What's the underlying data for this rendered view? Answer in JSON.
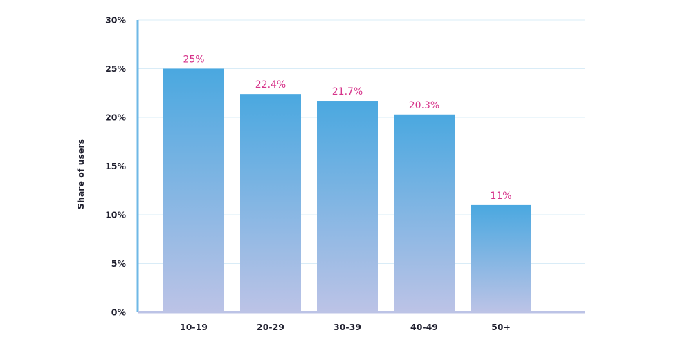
{
  "chart_data": {
    "type": "bar",
    "categories": [
      "10-19",
      "20-29",
      "30-39",
      "40-49",
      "50+"
    ],
    "values": [
      25,
      22.4,
      21.7,
      20.3,
      11
    ],
    "value_labels": [
      "25%",
      "22.4%",
      "21.7%",
      "20.3%",
      "11%"
    ],
    "title": "",
    "xlabel": "",
    "ylabel": "Share of users",
    "ylim": [
      0,
      30
    ],
    "yticks": [
      0,
      5,
      10,
      15,
      20,
      25,
      30
    ],
    "ytick_labels": [
      "0%",
      "5%",
      "10%",
      "15%",
      "20%",
      "25%",
      "30%"
    ],
    "grid": true,
    "legend": "none",
    "colors": {
      "bar_top": "#4aa8e0",
      "bar_bottom": "#bcc3e6",
      "value_label": "#d6338a",
      "axis": "#6fb8e6",
      "grid": "#d9ecf7",
      "text": "#1f1f2e"
    }
  }
}
